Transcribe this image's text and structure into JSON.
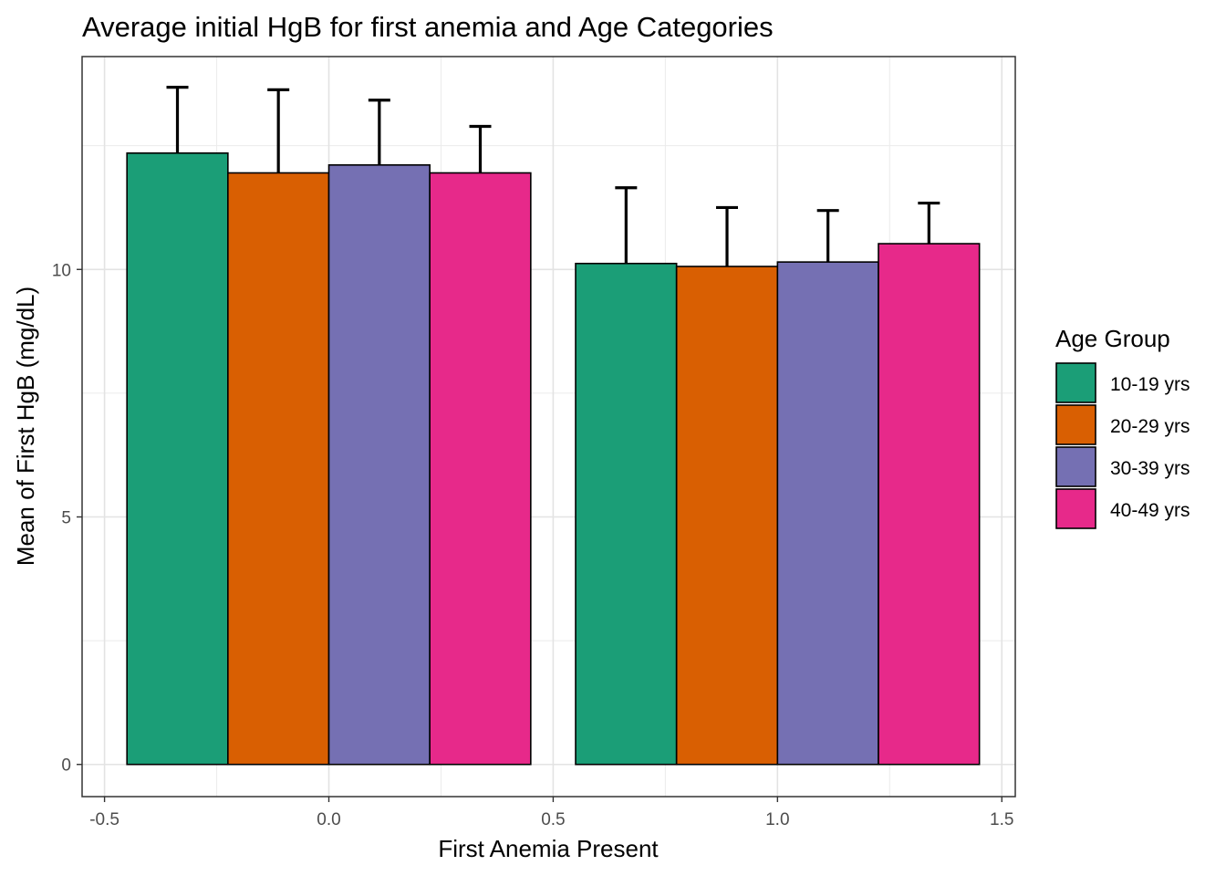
{
  "chart_data": {
    "type": "bar",
    "title": "Average initial HgB for first anemia and Age Categories",
    "xlabel": "First Anemia Present",
    "ylabel": "Mean of First HgB (mg/dL)",
    "xlim": [
      -0.55,
      1.53
    ],
    "ylim": [
      -0.65,
      14.3
    ],
    "x_ticks": [
      -0.5,
      0.0,
      0.5,
      1.0,
      1.5
    ],
    "x_tick_labels": [
      "-0.5",
      "0.0",
      "0.5",
      "1.0",
      "1.5"
    ],
    "y_ticks": [
      0,
      5,
      10
    ],
    "y_tick_labels": [
      "0",
      "5",
      "10"
    ],
    "grid": true,
    "legend": {
      "title": "Age Group",
      "position": "right"
    },
    "group_x": [
      0,
      1
    ],
    "group_width": 0.9,
    "series": [
      {
        "name": "10-19 yrs",
        "color": "#1B9E77",
        "values": [
          12.35,
          10.12
        ],
        "err_upper": [
          13.68,
          11.65
        ]
      },
      {
        "name": "20-29 yrs",
        "color": "#D95F02",
        "values": [
          11.95,
          10.06
        ],
        "err_upper": [
          13.63,
          11.25
        ]
      },
      {
        "name": "30-39 yrs",
        "color": "#7570B3",
        "values": [
          12.11,
          10.15
        ],
        "err_upper": [
          13.42,
          11.19
        ]
      },
      {
        "name": "40-49 yrs",
        "color": "#E7298A",
        "values": [
          11.95,
          10.52
        ],
        "err_upper": [
          12.89,
          11.34
        ]
      }
    ]
  }
}
